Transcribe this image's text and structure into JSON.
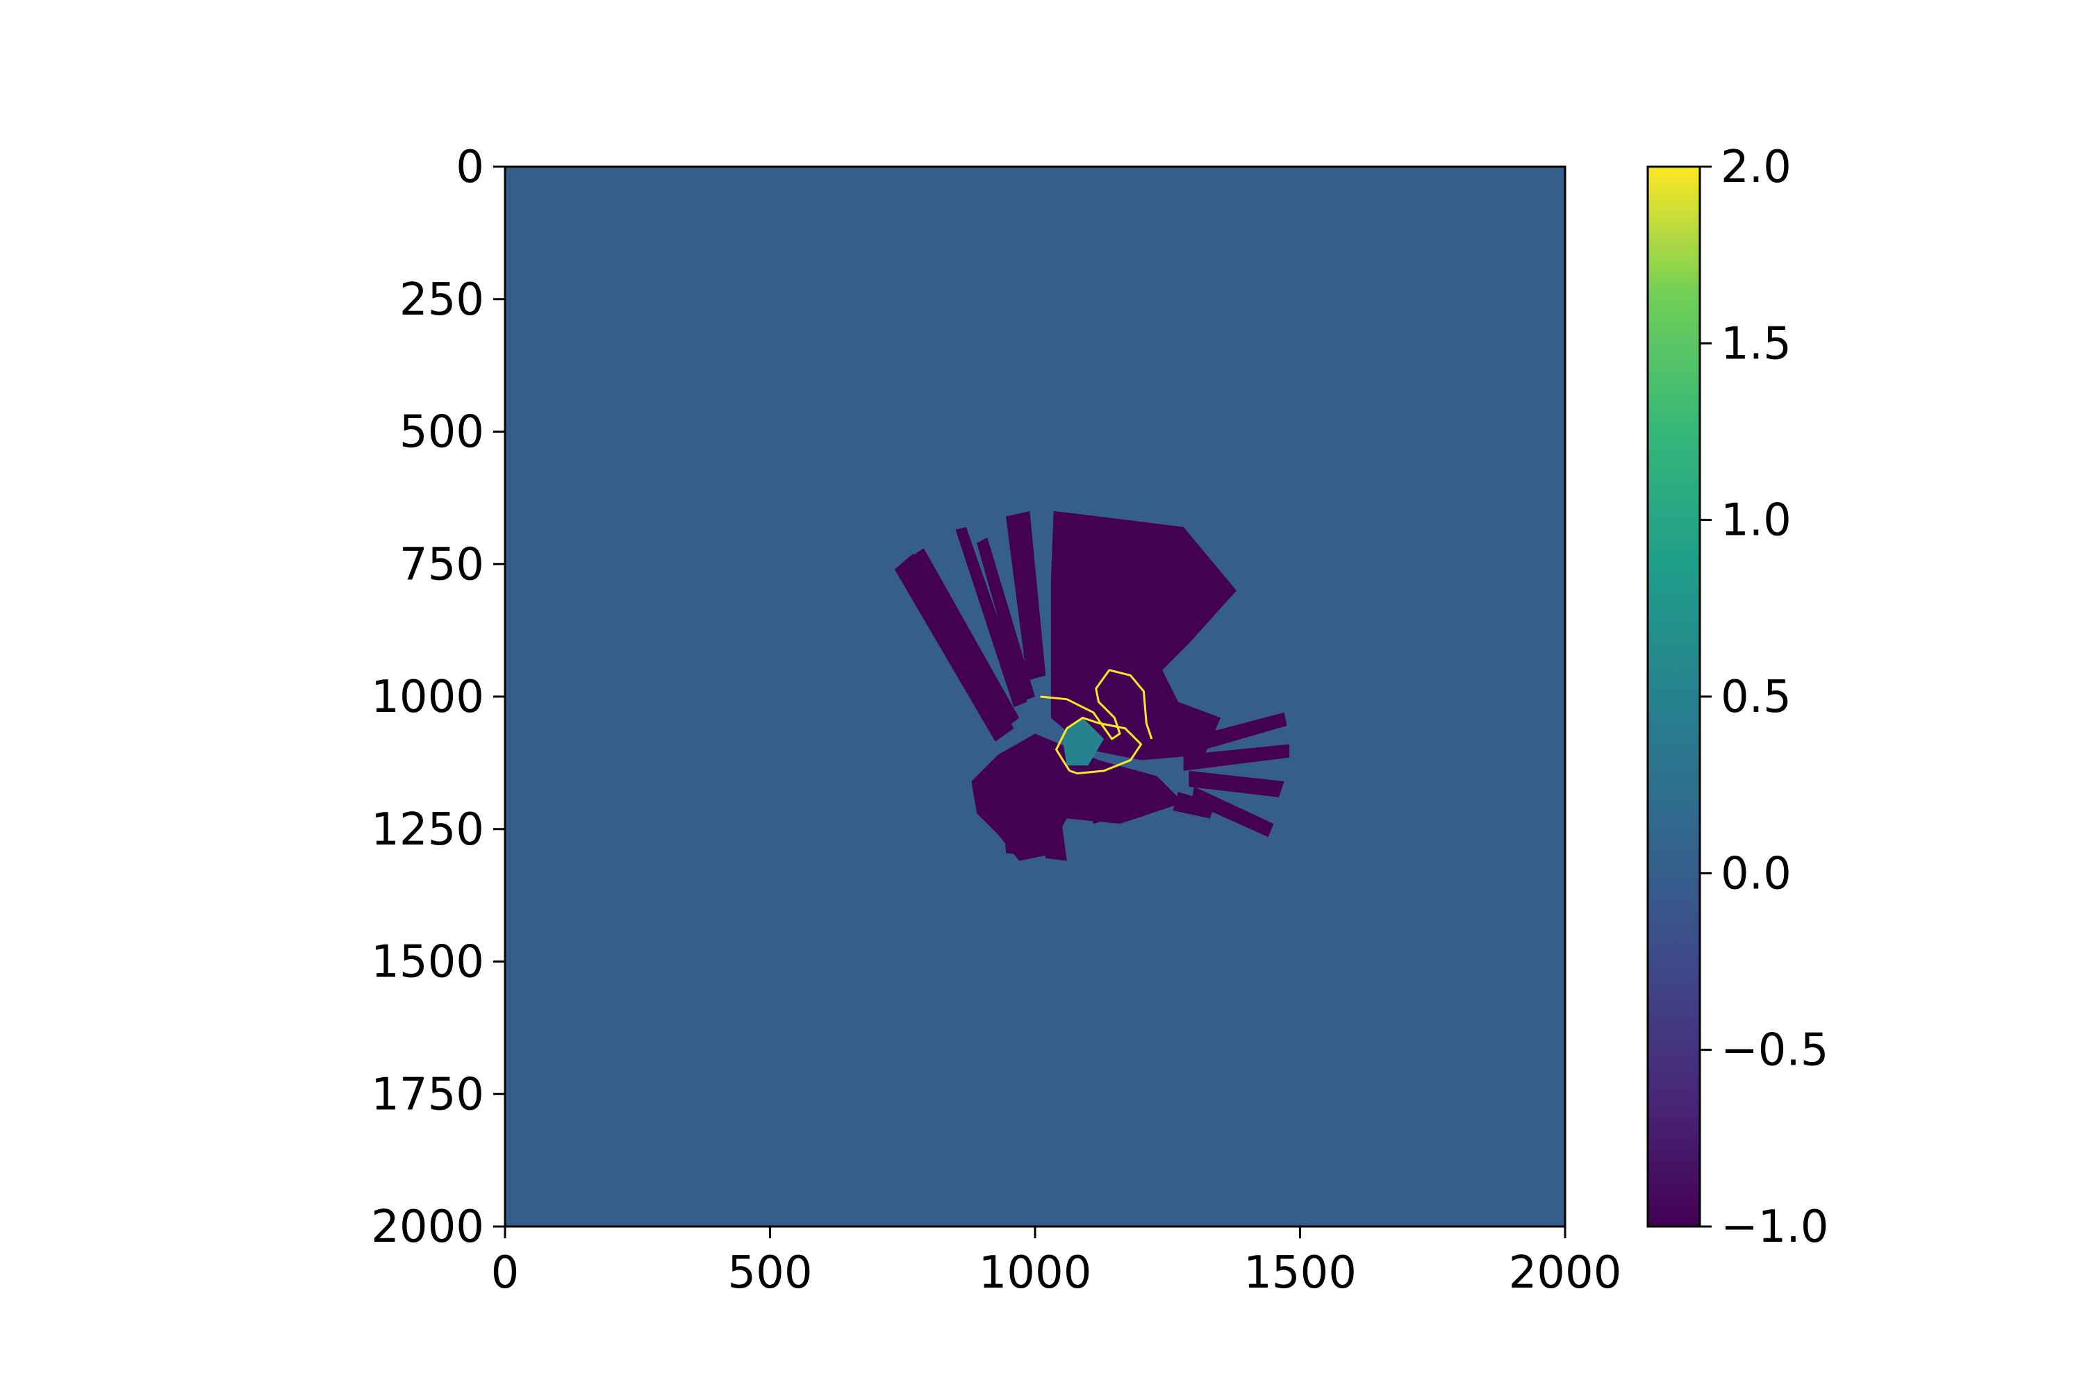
{
  "chart_data": {
    "type": "heatmap",
    "title": "",
    "xlabel": "",
    "ylabel": "",
    "xlim": [
      0,
      2000
    ],
    "ylim": [
      2000,
      0
    ],
    "x_ticks": [
      "0",
      "500",
      "1000",
      "1500",
      "2000"
    ],
    "y_ticks": [
      "0",
      "250",
      "500",
      "750",
      "1000",
      "1250",
      "1500",
      "1750",
      "2000"
    ],
    "colormap": "viridis",
    "background_value": 0.0,
    "colorbar": {
      "range": [
        -1.0,
        2.0
      ],
      "ticks": [
        "2.0",
        "1.5",
        "1.0",
        "0.5",
        "0.0",
        "−0.5",
        "−1.0"
      ],
      "tick_values": [
        2.0,
        1.5,
        1.0,
        0.5,
        0.0,
        -0.5,
        -1.0
      ]
    },
    "regions": [
      {
        "name": "fan-main",
        "value": -1.0,
        "points": [
          [
            1030,
            780
          ],
          [
            1035,
            650
          ],
          [
            1120,
            660
          ],
          [
            1280,
            680
          ],
          [
            1380,
            800
          ],
          [
            1290,
            900
          ],
          [
            1240,
            950
          ],
          [
            1270,
            1010
          ],
          [
            1350,
            1040
          ],
          [
            1320,
            1110
          ],
          [
            1200,
            1120
          ],
          [
            1100,
            1100
          ],
          [
            1030,
            1040
          ]
        ]
      },
      {
        "name": "ray-nw-1",
        "value": -1.0,
        "points": [
          [
            735,
            760
          ],
          [
            770,
            730
          ],
          [
            960,
            1060
          ],
          [
            925,
            1085
          ]
        ]
      },
      {
        "name": "ray-nw-2",
        "value": -1.0,
        "points": [
          [
            760,
            740
          ],
          [
            790,
            720
          ],
          [
            970,
            1040
          ],
          [
            945,
            1060
          ]
        ]
      },
      {
        "name": "ray-nw-3",
        "value": -1.0,
        "points": [
          [
            850,
            685
          ],
          [
            870,
            680
          ],
          [
            985,
            1010
          ],
          [
            960,
            1020
          ]
        ]
      },
      {
        "name": "ray-nw-4",
        "value": -1.0,
        "points": [
          [
            890,
            710
          ],
          [
            910,
            700
          ],
          [
            1000,
            1000
          ],
          [
            975,
            1010
          ]
        ]
      },
      {
        "name": "ray-n-1",
        "value": -1.0,
        "points": [
          [
            945,
            660
          ],
          [
            990,
            650
          ],
          [
            1020,
            960
          ],
          [
            985,
            970
          ]
        ]
      },
      {
        "name": "spoke-e-1",
        "value": -1.0,
        "points": [
          [
            1280,
            1080
          ],
          [
            1470,
            1030
          ],
          [
            1475,
            1055
          ],
          [
            1285,
            1110
          ]
        ]
      },
      {
        "name": "spoke-e-2",
        "value": -1.0,
        "points": [
          [
            1280,
            1110
          ],
          [
            1480,
            1090
          ],
          [
            1480,
            1115
          ],
          [
            1280,
            1140
          ]
        ]
      },
      {
        "name": "spoke-e-3",
        "value": -1.0,
        "points": [
          [
            1290,
            1140
          ],
          [
            1470,
            1160
          ],
          [
            1460,
            1190
          ],
          [
            1290,
            1170
          ]
        ]
      },
      {
        "name": "spoke-e-4",
        "value": -1.0,
        "points": [
          [
            1300,
            1170
          ],
          [
            1450,
            1240
          ],
          [
            1440,
            1265
          ],
          [
            1295,
            1200
          ]
        ]
      },
      {
        "name": "spoke-e-5",
        "value": -1.0,
        "points": [
          [
            1270,
            1180
          ],
          [
            1340,
            1200
          ],
          [
            1330,
            1230
          ],
          [
            1260,
            1215
          ]
        ]
      },
      {
        "name": "lower-blob",
        "value": -1.0,
        "points": [
          [
            930,
            1110
          ],
          [
            1000,
            1070
          ],
          [
            1120,
            1120
          ],
          [
            1230,
            1150
          ],
          [
            1280,
            1200
          ],
          [
            1160,
            1240
          ],
          [
            1060,
            1230
          ],
          [
            1020,
            1300
          ],
          [
            970,
            1310
          ],
          [
            930,
            1260
          ],
          [
            890,
            1220
          ],
          [
            880,
            1160
          ]
        ]
      },
      {
        "name": "spoke-s-1",
        "value": -1.0,
        "points": [
          [
            1010,
            1230
          ],
          [
            1050,
            1235
          ],
          [
            1060,
            1310
          ],
          [
            1020,
            1305
          ]
        ]
      },
      {
        "name": "spoke-s-2",
        "value": -1.0,
        "points": [
          [
            940,
            1230
          ],
          [
            990,
            1220
          ],
          [
            980,
            1300
          ],
          [
            945,
            1295
          ]
        ]
      },
      {
        "name": "spoke-se-1",
        "value": -1.0,
        "points": [
          [
            1100,
            1200
          ],
          [
            1200,
            1180
          ],
          [
            1215,
            1210
          ],
          [
            1110,
            1240
          ]
        ]
      },
      {
        "name": "inner-patch",
        "value": 0.5,
        "points": [
          [
            1050,
            1070
          ],
          [
            1090,
            1040
          ],
          [
            1130,
            1080
          ],
          [
            1100,
            1130
          ],
          [
            1060,
            1130
          ]
        ]
      }
    ],
    "paths": [
      {
        "name": "trajectory-loop",
        "value": 2.0,
        "points": [
          [
            1065,
            1140
          ],
          [
            1040,
            1100
          ],
          [
            1060,
            1060
          ],
          [
            1090,
            1040
          ],
          [
            1120,
            1050
          ],
          [
            1170,
            1060
          ],
          [
            1200,
            1090
          ],
          [
            1180,
            1120
          ],
          [
            1130,
            1140
          ],
          [
            1080,
            1145
          ],
          [
            1065,
            1140
          ]
        ]
      },
      {
        "name": "trajectory-outer",
        "value": 2.0,
        "points": [
          [
            1010,
            1000
          ],
          [
            1060,
            1005
          ],
          [
            1110,
            1030
          ],
          [
            1145,
            1080
          ],
          [
            1160,
            1070
          ],
          [
            1150,
            1040
          ],
          [
            1120,
            1010
          ],
          [
            1115,
            985
          ],
          [
            1140,
            950
          ],
          [
            1180,
            960
          ],
          [
            1205,
            990
          ],
          [
            1210,
            1050
          ],
          [
            1220,
            1080
          ]
        ]
      }
    ]
  }
}
